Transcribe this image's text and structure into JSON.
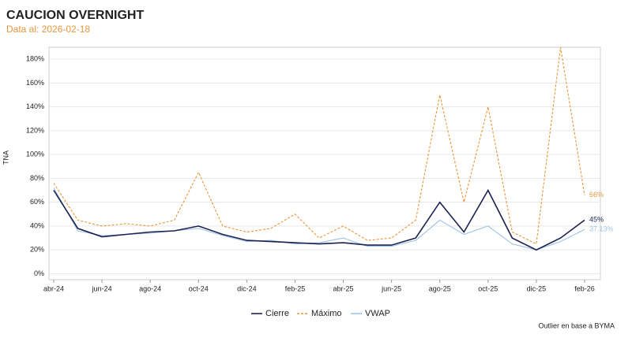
{
  "chart_data": {
    "type": "line",
    "title": "CAUCION OVERNIGHT",
    "subtitle": "Data al: 2026-02-18",
    "y_label": "TNA",
    "note": "Outlier en base a BYMA",
    "categories": [
      "abr-24",
      null,
      "jun-24",
      null,
      "ago-24",
      null,
      "oct-24",
      null,
      "dic-24",
      null,
      "feb-25",
      null,
      "abr-25",
      null,
      "jun-25",
      null,
      "ago-25",
      null,
      "oct-25",
      null,
      "dic-25",
      null,
      "feb-26"
    ],
    "series": [
      {
        "name": "Cierre",
        "color": "#1b2150",
        "dash": false,
        "end_label": "45%",
        "values": [
          70,
          38,
          31,
          33,
          35,
          36,
          40,
          33,
          28,
          27,
          26,
          25,
          26,
          24,
          24,
          30,
          60,
          35,
          70,
          30,
          20,
          30,
          45
        ]
      },
      {
        "name": "Máximo",
        "color": "#e8963c",
        "dash": true,
        "end_label": "66%",
        "values": [
          76,
          45,
          40,
          42,
          40,
          45,
          85,
          40,
          35,
          38,
          50,
          30,
          40,
          28,
          30,
          45,
          150,
          60,
          140,
          35,
          25,
          190,
          66
        ]
      },
      {
        "name": "VWAP",
        "color": "#9ec3e6",
        "dash": false,
        "end_label": "37.13%",
        "values": [
          72,
          36,
          32,
          33,
          34,
          36,
          38,
          32,
          27,
          28,
          25,
          26,
          30,
          23,
          23,
          28,
          45,
          33,
          40,
          25,
          20,
          27,
          37.13
        ]
      }
    ],
    "ylim": [
      -5,
      190
    ],
    "yticks": [
      {
        "value": 0,
        "label": "0%"
      },
      {
        "value": 20,
        "label": "20%"
      },
      {
        "value": 40,
        "label": "40%"
      },
      {
        "value": 60,
        "label": "60%"
      },
      {
        "value": 80,
        "label": "80%"
      },
      {
        "value": 100,
        "label": "100%"
      },
      {
        "value": 120,
        "label": "120%"
      },
      {
        "value": 140,
        "label": "140%"
      },
      {
        "value": 160,
        "label": "160%"
      },
      {
        "value": 180,
        "label": "180%"
      }
    ],
    "grid": true,
    "legend": "bottom"
  }
}
